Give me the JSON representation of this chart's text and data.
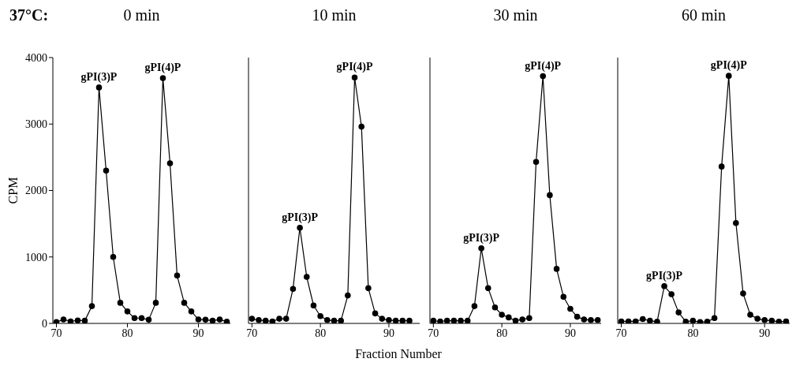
{
  "chart_data": [
    {
      "type": "line",
      "title": "0 min",
      "ylabel": "CPM",
      "x": [
        70,
        71,
        72,
        73,
        74,
        75,
        76,
        77,
        78,
        79,
        80,
        81,
        82,
        83,
        84,
        85,
        86,
        87,
        88,
        89,
        90,
        91,
        92,
        93,
        94
      ],
      "series": [
        {
          "color": "#000000",
          "values": [
            20,
            60,
            30,
            45,
            40,
            260,
            3550,
            2300,
            1000,
            310,
            180,
            80,
            80,
            55,
            310,
            3690,
            2410,
            720,
            310,
            180,
            60,
            55,
            40,
            60,
            25
          ]
        }
      ],
      "xlim": [
        69.5,
        94.5
      ],
      "xticks": [
        70,
        80,
        90
      ],
      "ylim": [
        0,
        4000
      ],
      "yticks": [
        0,
        1000,
        2000,
        3000,
        4000
      ],
      "marker": "circle",
      "line_style": "solid",
      "annotations": [
        "37°C:",
        {
          "text": "gPI(3)P",
          "x": 76,
          "y": 3550
        },
        {
          "text": "gPI(4)P",
          "x": 85,
          "y": 3690
        }
      ]
    },
    {
      "type": "line",
      "title": "10 min",
      "xlabel": "Fraction Number",
      "x": [
        70,
        71,
        72,
        73,
        74,
        75,
        76,
        77,
        78,
        79,
        80,
        81,
        82,
        83,
        84,
        85,
        86,
        87,
        88,
        89,
        90,
        91,
        92,
        93
      ],
      "series": [
        {
          "color": "#000000",
          "values": [
            70,
            50,
            40,
            30,
            70,
            70,
            520,
            1440,
            700,
            270,
            110,
            50,
            40,
            40,
            420,
            3700,
            2960,
            530,
            150,
            70,
            50,
            40,
            40,
            40
          ]
        }
      ],
      "xlim": [
        69.5,
        94.5
      ],
      "xticks": [
        70,
        80,
        90
      ],
      "ylim": [
        0,
        4000
      ],
      "yticks": [
        0,
        1000,
        2000,
        3000,
        4000
      ],
      "tick_labels": "x",
      "marker": "circle",
      "line_style": "solid",
      "annotations": [
        {
          "text": "gPI(3)P",
          "x": 77,
          "y": 1440
        },
        {
          "text": "gPI(4)P",
          "x": 85,
          "y": 3700
        }
      ]
    },
    {
      "type": "line",
      "title": "30 min",
      "x": [
        70,
        71,
        72,
        73,
        74,
        75,
        76,
        77,
        78,
        79,
        80,
        81,
        82,
        83,
        84,
        85,
        86,
        87,
        88,
        89,
        90,
        91,
        92,
        93,
        94
      ],
      "series": [
        {
          "color": "#000000",
          "values": [
            40,
            30,
            40,
            40,
            40,
            40,
            260,
            1130,
            530,
            240,
            130,
            90,
            40,
            60,
            80,
            2430,
            3720,
            1930,
            820,
            400,
            220,
            100,
            60,
            50,
            50
          ]
        }
      ],
      "xlim": [
        69.5,
        94.5
      ],
      "xticks": [
        70,
        80,
        90
      ],
      "ylim": [
        0,
        4000
      ],
      "yticks": [
        0,
        1000,
        2000,
        3000,
        4000
      ],
      "tick_labels": "x",
      "marker": "circle",
      "line_style": "solid",
      "annotations": [
        {
          "text": "gPI(3)P",
          "x": 77,
          "y": 1130
        },
        {
          "text": "gPI(4)P",
          "x": 86,
          "y": 3720
        }
      ]
    },
    {
      "type": "line",
      "title": "60 min",
      "x": [
        70,
        71,
        72,
        73,
        74,
        75,
        76,
        77,
        78,
        79,
        80,
        81,
        82,
        83,
        84,
        85,
        86,
        87,
        88,
        89,
        90,
        91,
        92,
        93
      ],
      "series": [
        {
          "color": "#000000",
          "values": [
            30,
            30,
            30,
            65,
            40,
            25,
            560,
            440,
            165,
            25,
            40,
            20,
            25,
            80,
            2360,
            3725,
            1510,
            450,
            130,
            70,
            50,
            40,
            25,
            30
          ]
        }
      ],
      "xlim": [
        69.5,
        93.5
      ],
      "xticks": [
        70,
        80,
        90
      ],
      "ylim": [
        0,
        4000
      ],
      "yticks": [
        0,
        1000,
        2000,
        3000,
        4000
      ],
      "tick_labels": "x",
      "marker": "circle",
      "line_style": "solid",
      "annotations": [
        {
          "text": "gPI(3)P",
          "x": 76,
          "y": 560
        },
        {
          "text": "gPI(4)P",
          "x": 85,
          "y": 3725
        }
      ]
    }
  ]
}
